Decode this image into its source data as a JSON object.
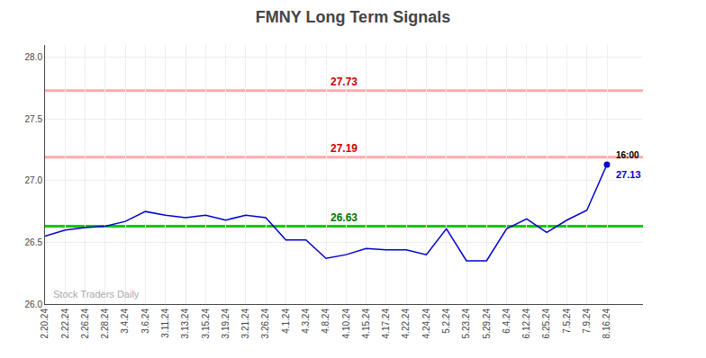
{
  "chart_data": {
    "type": "line",
    "title": "FMNY Long Term Signals",
    "categories": [
      "2.20.24",
      "2.22.24",
      "2.26.24",
      "2.28.24",
      "3.4.24",
      "3.6.24",
      "3.11.24",
      "3.13.24",
      "3.15.24",
      "3.19.24",
      "3.21.24",
      "3.26.24",
      "4.1.24",
      "4.3.24",
      "4.8.24",
      "4.10.24",
      "4.15.24",
      "4.17.24",
      "4.22.24",
      "4.24.24",
      "5.2.24",
      "5.23.24",
      "5.29.24",
      "6.4.24",
      "6.12.24",
      "6.25.24",
      "7.5.24",
      "7.9.24",
      "8.16.24"
    ],
    "values": [
      26.55,
      26.6,
      26.62,
      26.63,
      26.67,
      26.75,
      26.72,
      26.7,
      26.72,
      26.68,
      26.72,
      26.7,
      26.52,
      26.52,
      26.37,
      26.4,
      26.45,
      26.44,
      26.44,
      26.4,
      26.61,
      26.35,
      26.35,
      26.61,
      26.69,
      26.58,
      26.68,
      26.76,
      27.13
    ],
    "color": "#0000cc",
    "ylim": [
      26.0,
      28.1
    ],
    "yticks": [
      {
        "value": 26.0,
        "label": "26.0"
      },
      26.5,
      {
        "value": 27.0,
        "label": "27.0"
      },
      27.5,
      {
        "value": 28.0,
        "label": "28.0"
      }
    ],
    "grid": true,
    "hlines": [
      {
        "value": 27.73,
        "label": "27.73",
        "color": "#ffaaaa",
        "label_color": "#cc0000"
      },
      {
        "value": 27.19,
        "label": "27.19",
        "color": "#ffaaaa",
        "label_color": "#cc0000"
      },
      {
        "value": 26.63,
        "label": "26.63",
        "color": "#00cc00",
        "label_color": "#007700"
      }
    ],
    "last_point": {
      "time_label": "16:00",
      "time_label_color": "#000000",
      "value": 27.13,
      "value_label": "27.13"
    },
    "watermark": {
      "text": "Stock Traders Daily",
      "color": "#aaaaaa"
    }
  }
}
